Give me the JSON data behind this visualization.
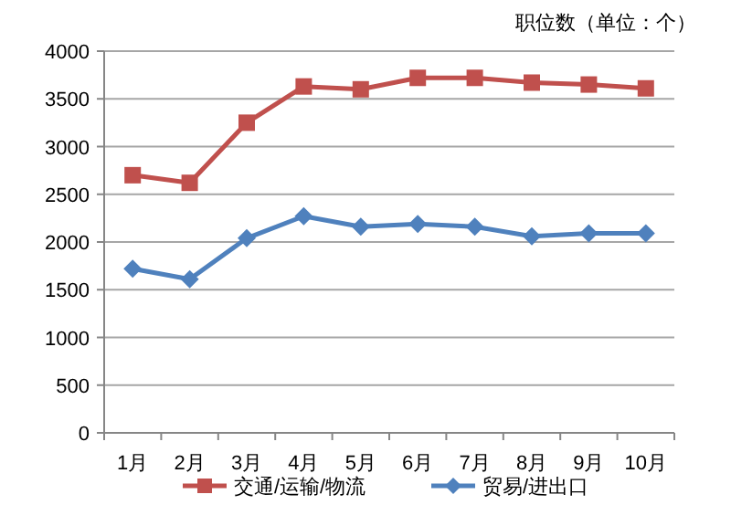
{
  "chart_data": {
    "type": "line",
    "ylabel": "职位数（单位：个）",
    "categories": [
      "1月",
      "2月",
      "3月",
      "4月",
      "5月",
      "6月",
      "7月",
      "8月",
      "9月",
      "10月"
    ],
    "series": [
      {
        "name": "交通/运输/物流",
        "color": "#c0504d",
        "marker": "square",
        "values": [
          2700,
          2620,
          3250,
          3630,
          3600,
          3720,
          3720,
          3670,
          3650,
          3610
        ]
      },
      {
        "name": "贸易/进出口",
        "color": "#4f81bd",
        "marker": "diamond",
        "values": [
          1720,
          1610,
          2040,
          2270,
          2160,
          2190,
          2160,
          2060,
          2090,
          2090
        ]
      }
    ],
    "ylim": [
      0,
      4000
    ],
    "yticks": [
      0,
      500,
      1000,
      1500,
      2000,
      2500,
      3000,
      3500,
      4000
    ],
    "grid": "y",
    "legend": "bottom",
    "line_style": "solid"
  }
}
